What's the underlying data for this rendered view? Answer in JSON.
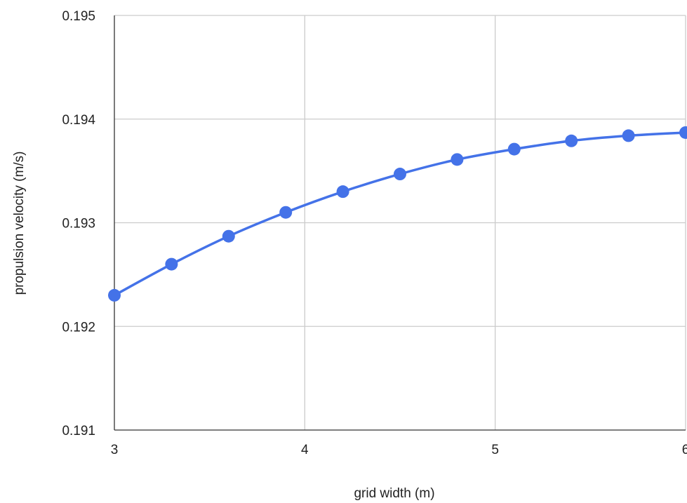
{
  "chart_data": {
    "type": "line",
    "title": "",
    "xlabel": "grid width (m)",
    "ylabel": "propulsion velocity (m/s)",
    "xlim": [
      3,
      6
    ],
    "ylim": [
      0.191,
      0.195
    ],
    "x_ticks": [
      3,
      4,
      5,
      6
    ],
    "y_ticks": [
      0.191,
      0.192,
      0.193,
      0.194,
      0.195
    ],
    "x_tick_labels": [
      "3",
      "4",
      "5",
      "6"
    ],
    "y_tick_labels": [
      "0.191",
      "0.192",
      "0.193",
      "0.194",
      "0.195"
    ],
    "grid": true,
    "legend": "none",
    "series": [
      {
        "color": "#4472e8",
        "x": [
          3.0,
          3.3,
          3.6,
          3.9,
          4.2,
          4.5,
          4.8,
          5.1,
          5.4,
          5.7,
          6.0
        ],
        "y": [
          0.1923,
          0.1926,
          0.19287,
          0.1931,
          0.1933,
          0.19347,
          0.19361,
          0.19371,
          0.19379,
          0.19384,
          0.19387
        ]
      }
    ]
  }
}
